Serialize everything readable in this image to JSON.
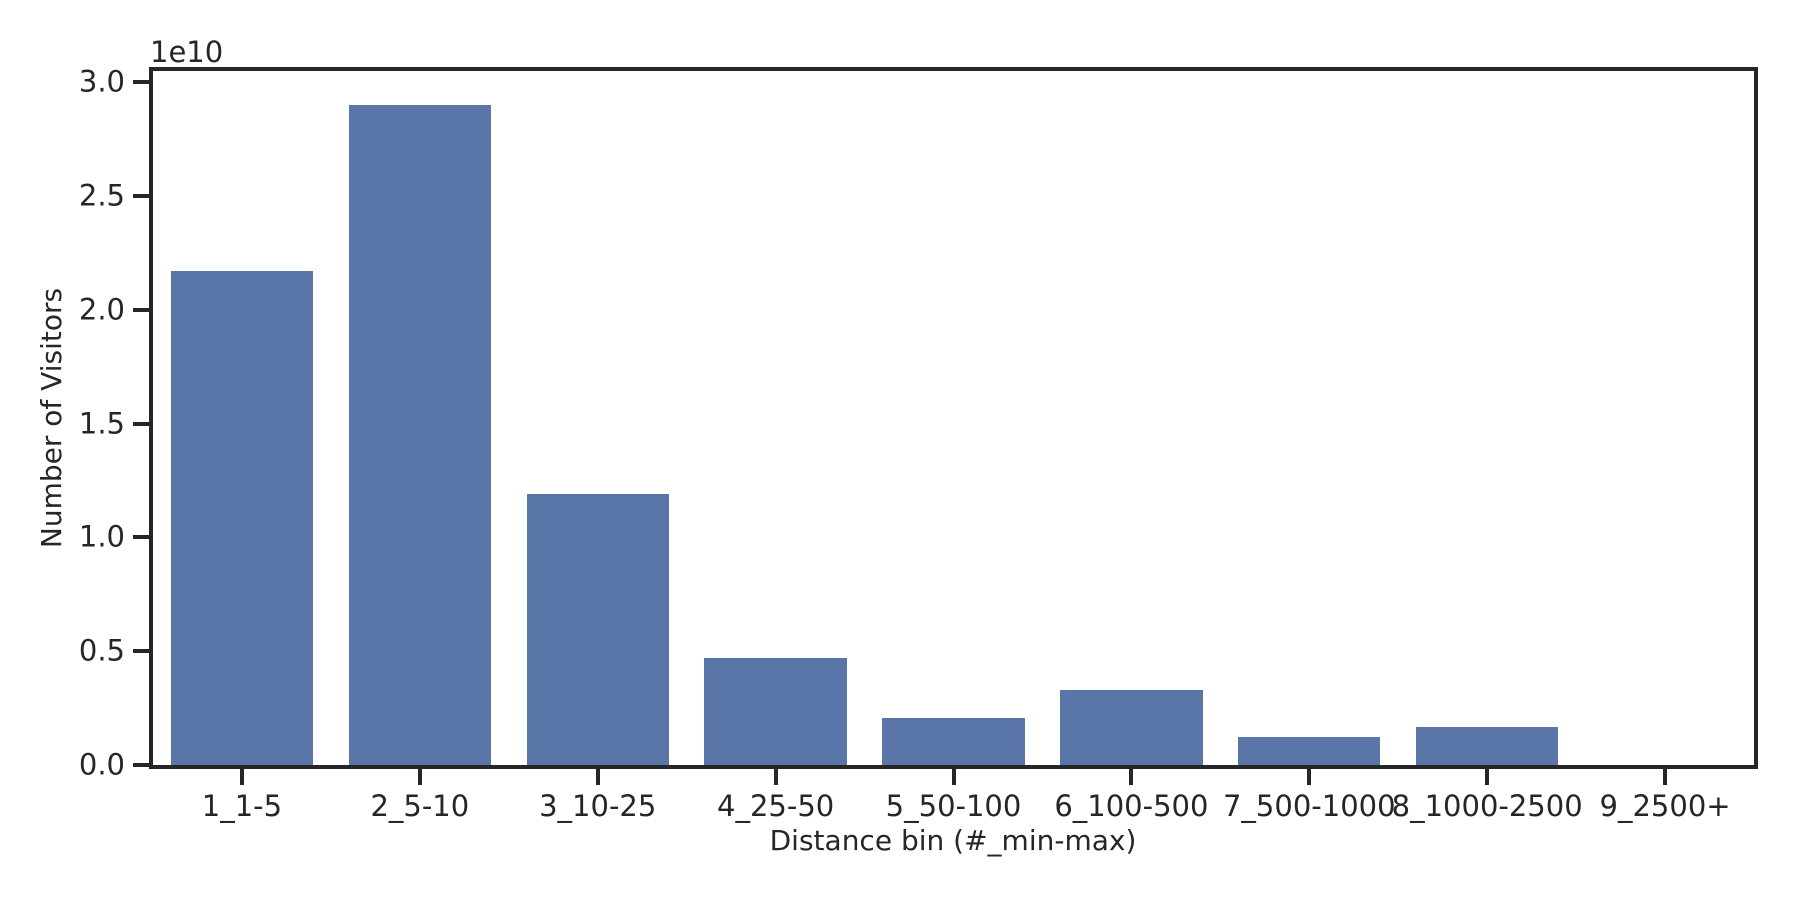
{
  "chart_data": {
    "type": "bar",
    "title": "",
    "xlabel": "Distance bin (#_min-max)",
    "ylabel": "Number of Visitors",
    "y_offset_text": "1e10",
    "categories": [
      "1_1-5",
      "2_5-10",
      "3_10-25",
      "4_25-50",
      "5_50-100",
      "6_100-500",
      "7_500-1000",
      "8_1000-2500",
      "9_2500+"
    ],
    "values": [
      21700000000,
      29000000000,
      11900000000,
      4700000000,
      2050000000,
      3300000000,
      1250000000,
      1650000000,
      0
    ],
    "ylim": [
      0,
      30500000000
    ],
    "yticks": [
      0,
      5000000000,
      10000000000,
      15000000000,
      20000000000,
      25000000000,
      30000000000
    ],
    "ytick_labels": [
      "0.0",
      "0.5",
      "1.0",
      "1.5",
      "2.0",
      "2.5",
      "3.0"
    ],
    "bar_width_frac": 0.8,
    "bar_color": "#5a76a8",
    "axis_color": "#262626",
    "text_color": "#262626",
    "background": "#ffffff",
    "grid": false,
    "legend": null
  }
}
